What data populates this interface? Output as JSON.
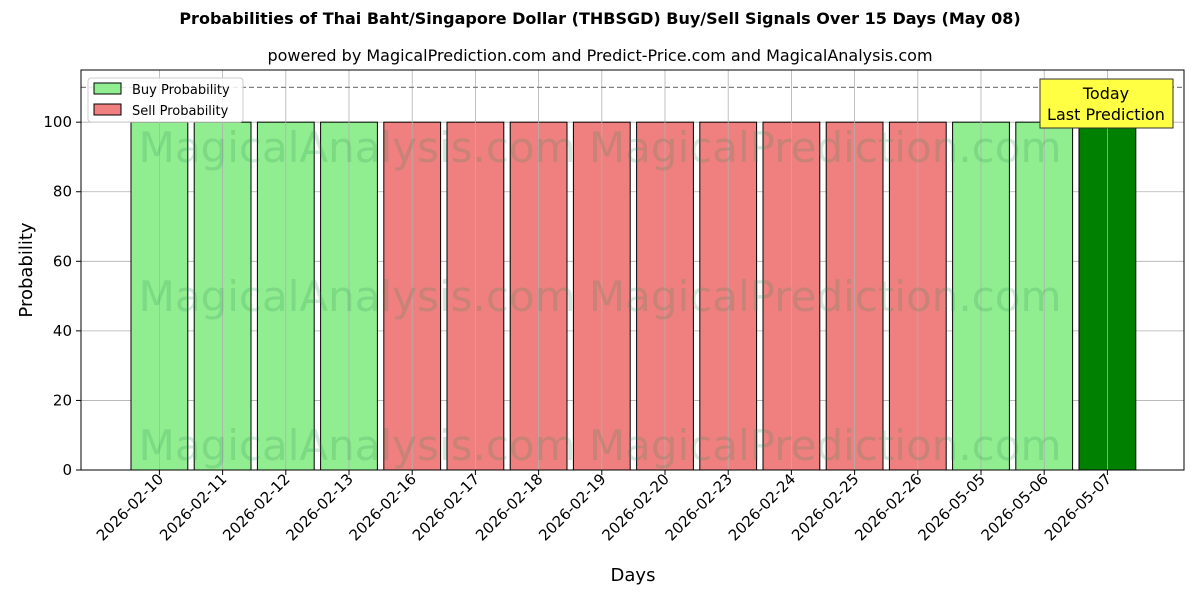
{
  "chart_data": {
    "type": "bar",
    "title": "Probabilities of Thai Baht/Singapore Dollar (THBSGD) Buy/Sell Signals Over 15 Days (May 08)",
    "subtitle": "powered by MagicalPrediction.com and Predict-Price.com and MagicalAnalysis.com",
    "xlabel": "Days",
    "ylabel": "Probability",
    "ylim": [
      0,
      115
    ],
    "yticks": [
      0,
      20,
      40,
      60,
      80,
      100
    ],
    "grid": true,
    "legend_placement": "top-left",
    "reference_line": 110,
    "categories": [
      "2026-02-10",
      "2026-02-11",
      "2026-02-12",
      "2026-02-13",
      "2026-02-16",
      "2026-02-17",
      "2026-02-18",
      "2026-02-19",
      "2026-02-20",
      "2026-02-23",
      "2026-02-24",
      "2026-02-25",
      "2026-02-26",
      "2026-05-05",
      "2026-05-06",
      "2026-05-07"
    ],
    "series": [
      {
        "name": "Buy Probability",
        "color": "#90ee90",
        "values": [
          100,
          100,
          100,
          100,
          0,
          0,
          0,
          0,
          0,
          0,
          0,
          0,
          0,
          100,
          100,
          100
        ]
      },
      {
        "name": "Sell Probability",
        "color": "#f08080",
        "values": [
          0,
          0,
          0,
          0,
          100,
          100,
          100,
          100,
          100,
          100,
          100,
          100,
          100,
          0,
          0,
          0
        ]
      }
    ],
    "highlight": {
      "category": "2026-05-07",
      "color": "#008000"
    },
    "annotation": {
      "line1": "Today",
      "line2": "Last Prediction",
      "color": "#ffff44"
    },
    "watermark": "MagicalAnalysis.com     MagicalPrediction.com"
  }
}
